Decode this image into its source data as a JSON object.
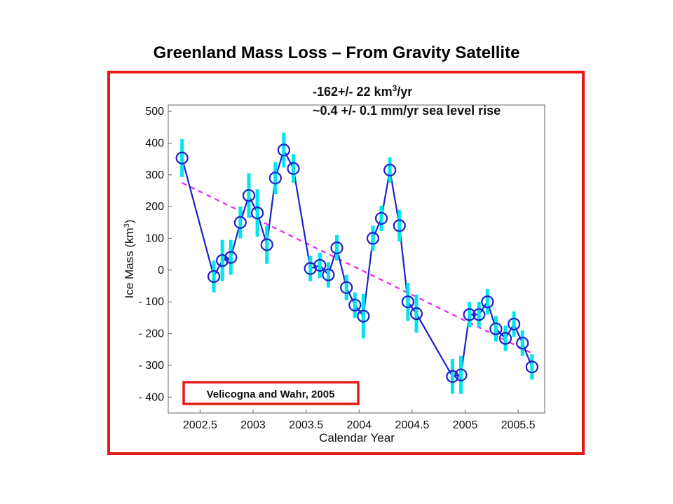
{
  "slide": {
    "title": "Greenland Mass Loss – From Gravity Satellite"
  },
  "colors": {
    "frame": "#e41b17",
    "series": "#1f1fcc",
    "error_bars": "#00e5ee",
    "trend": "#ee22ee",
    "citation_box": "#e41b17"
  },
  "chart_data": {
    "type": "line",
    "title": "",
    "xlabel": "Calendar Year",
    "ylabel_text": "Ice Mass (km",
    "ylabel_sup": "3",
    "ylabel_close": ")",
    "xlim": [
      2002.2,
      2005.75
    ],
    "ylim": [
      -450,
      520
    ],
    "xticks": [
      2002.5,
      2003,
      2003.5,
      2004,
      2004.5,
      2005,
      2005.5
    ],
    "xtick_labels": [
      "2002.5",
      "2003",
      "2003.5",
      "2004",
      "2004.5",
      "2005",
      "2005.5"
    ],
    "yticks": [
      500,
      400,
      300,
      200,
      100,
      0,
      -100,
      -200,
      -300,
      -400
    ],
    "ytick_labels": [
      "500",
      "400",
      "300",
      "200",
      "100",
      "0",
      "- 100",
      "- 200",
      "- 300",
      "- 400"
    ],
    "annotation": {
      "line1_pre": "-162+/- 22 km",
      "line1_sup": "3",
      "line1_post": "/yr",
      "line2": "~0.4 +/- 0.1 mm/yr sea level rise"
    },
    "citation": "Velicogna and Wahr, 2005",
    "trend": {
      "x": [
        2002.33,
        2005.65
      ],
      "y": [
        275,
        -265
      ]
    },
    "series": [
      {
        "x": [
          2002.33,
          2002.63,
          2002.71,
          2002.79,
          2002.88,
          2002.96,
          2003.04,
          2003.13,
          2003.21,
          2003.29,
          2003.38,
          2003.54,
          2003.63,
          2003.71,
          2003.79,
          2003.88,
          2003.96,
          2004.04,
          2004.13,
          2004.21,
          2004.29,
          2004.38,
          2004.46,
          2004.54,
          2004.88,
          2004.96,
          2005.04,
          2005.13,
          2005.21,
          2005.29,
          2005.38,
          2005.46,
          2005.54,
          2005.63
        ],
        "y": [
          353,
          -20,
          30,
          40,
          150,
          235,
          180,
          80,
          290,
          378,
          320,
          5,
          15,
          -15,
          70,
          -55,
          -110,
          -145,
          100,
          163,
          315,
          140,
          -100,
          -137,
          -335,
          -330,
          -140,
          -140,
          -100,
          -185,
          -215,
          -170,
          -230,
          -305
        ],
        "err": [
          60,
          50,
          65,
          55,
          50,
          70,
          75,
          60,
          50,
          55,
          45,
          40,
          40,
          40,
          40,
          40,
          40,
          70,
          40,
          40,
          40,
          50,
          60,
          60,
          55,
          60,
          40,
          40,
          40,
          40,
          40,
          40,
          40,
          40
        ]
      }
    ]
  }
}
